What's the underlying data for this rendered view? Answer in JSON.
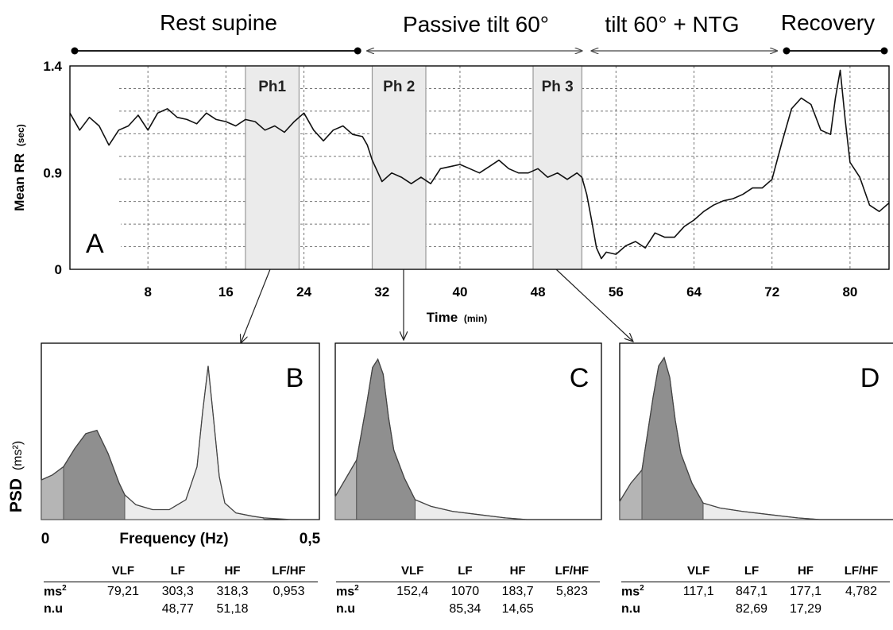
{
  "protocol": {
    "phases": [
      {
        "label": "Rest supine",
        "x_start": 0,
        "x_end": 30,
        "marker": "dot"
      },
      {
        "label": "Passive tilt 60°",
        "x_start": 30,
        "x_end": 53,
        "marker": "arrow"
      },
      {
        "label": "tilt 60° + NTG",
        "x_start": 53,
        "x_end": 73,
        "marker": "arrow"
      },
      {
        "label": "Recovery",
        "x_start": 73,
        "x_end": 84,
        "marker": "dot"
      }
    ]
  },
  "chart_data": [
    {
      "type": "line",
      "panel_label": "A",
      "xlabel": "Time",
      "xlabel_unit": "(min)",
      "ylabel": "Mean RR",
      "ylabel_unit": "(sec)",
      "xlim": [
        0,
        84
      ],
      "ylim": [
        0.45,
        1.4
      ],
      "x_ticks": [
        "8",
        "16",
        "24",
        "32",
        "40",
        "48",
        "56",
        "64",
        "72",
        "80"
      ],
      "y_tick_labels": [
        {
          "value": 1.4,
          "label": "1.4"
        },
        {
          "value": 0.9,
          "label": "0.9"
        },
        {
          "value": 0.45,
          "label": "0"
        }
      ],
      "grid": true,
      "highlight_windows": [
        {
          "label": "Ph1",
          "x_start": 18,
          "x_end": 23.5
        },
        {
          "label": "Ph 2",
          "x_start": 31,
          "x_end": 36.5
        },
        {
          "label": "Ph 3",
          "x_start": 47.5,
          "x_end": 52.5
        }
      ],
      "series": [
        {
          "x": [
            0,
            1,
            2,
            3,
            4,
            5,
            6,
            7,
            8,
            9,
            10,
            11,
            12,
            13,
            14,
            15,
            16,
            17,
            18,
            19,
            20,
            21,
            22,
            23,
            24,
            25,
            26,
            27,
            28,
            29,
            30,
            30.5,
            31,
            32,
            33,
            34,
            35,
            36,
            37,
            38,
            39,
            40,
            41,
            42,
            43,
            44,
            45,
            46,
            47,
            48,
            49,
            50,
            51,
            52,
            52.5,
            53,
            53.5,
            54,
            54.5,
            55,
            56,
            57,
            58,
            59,
            60,
            61,
            62,
            63,
            64,
            65,
            66,
            67,
            68,
            69,
            70,
            71,
            72,
            73,
            74,
            75,
            76,
            77,
            78,
            78.5,
            79,
            79.5,
            80,
            81,
            82,
            83,
            84
          ],
          "y": [
            1.18,
            1.1,
            1.16,
            1.12,
            1.03,
            1.1,
            1.12,
            1.17,
            1.1,
            1.18,
            1.2,
            1.16,
            1.15,
            1.13,
            1.18,
            1.15,
            1.14,
            1.12,
            1.15,
            1.14,
            1.1,
            1.12,
            1.09,
            1.14,
            1.18,
            1.1,
            1.05,
            1.1,
            1.12,
            1.08,
            1.07,
            1.03,
            0.96,
            0.86,
            0.9,
            0.88,
            0.85,
            0.88,
            0.85,
            0.92,
            0.93,
            0.94,
            0.92,
            0.9,
            0.93,
            0.96,
            0.92,
            0.9,
            0.9,
            0.92,
            0.88,
            0.9,
            0.87,
            0.9,
            0.88,
            0.8,
            0.68,
            0.55,
            0.5,
            0.53,
            0.52,
            0.56,
            0.58,
            0.55,
            0.62,
            0.6,
            0.6,
            0.65,
            0.68,
            0.72,
            0.75,
            0.77,
            0.78,
            0.8,
            0.83,
            0.83,
            0.87,
            1.04,
            1.2,
            1.25,
            1.22,
            1.1,
            1.08,
            1.25,
            1.38,
            1.15,
            0.95,
            0.88,
            0.75,
            0.72,
            0.76
          ]
        }
      ]
    },
    {
      "type": "area",
      "panel_label": "B",
      "xlabel": "Frequency (Hz)",
      "ylabel": "PSD",
      "ylabel_unit": "(ms²)",
      "xlim": [
        0,
        0.5
      ],
      "x_tick_labels": [
        "0",
        "0,5"
      ],
      "band_edges": [
        0.04,
        0.15,
        0.4
      ],
      "series": [
        {
          "x": [
            0.0,
            0.02,
            0.04,
            0.06,
            0.08,
            0.1,
            0.12,
            0.14,
            0.15,
            0.17,
            0.2,
            0.23,
            0.26,
            0.28,
            0.29,
            0.3,
            0.31,
            0.32,
            0.33,
            0.35,
            0.38,
            0.4,
            0.45,
            0.5
          ],
          "y": [
            0.24,
            0.27,
            0.32,
            0.43,
            0.52,
            0.54,
            0.4,
            0.22,
            0.15,
            0.09,
            0.06,
            0.06,
            0.12,
            0.32,
            0.65,
            0.93,
            0.6,
            0.26,
            0.1,
            0.04,
            0.02,
            0.01,
            0.0,
            0.0
          ]
        }
      ]
    },
    {
      "type": "area",
      "panel_label": "C",
      "xlim": [
        0,
        0.5
      ],
      "band_edges": [
        0.04,
        0.15,
        0.4
      ],
      "series": [
        {
          "x": [
            0.0,
            0.02,
            0.04,
            0.06,
            0.07,
            0.08,
            0.09,
            0.1,
            0.11,
            0.13,
            0.15,
            0.18,
            0.22,
            0.27,
            0.32,
            0.36,
            0.4,
            0.45,
            0.5
          ],
          "y": [
            0.14,
            0.25,
            0.36,
            0.72,
            0.92,
            0.97,
            0.88,
            0.62,
            0.42,
            0.25,
            0.12,
            0.08,
            0.05,
            0.03,
            0.01,
            0.0,
            0.0,
            0.0,
            0.0
          ]
        }
      ]
    },
    {
      "type": "area",
      "panel_label": "D",
      "xlim": [
        0,
        0.5
      ],
      "band_edges": [
        0.04,
        0.15,
        0.4
      ],
      "series": [
        {
          "x": [
            0.0,
            0.02,
            0.04,
            0.06,
            0.07,
            0.08,
            0.09,
            0.1,
            0.11,
            0.13,
            0.15,
            0.18,
            0.22,
            0.27,
            0.32,
            0.36,
            0.4,
            0.45,
            0.5
          ],
          "y": [
            0.11,
            0.22,
            0.3,
            0.74,
            0.93,
            0.98,
            0.86,
            0.6,
            0.4,
            0.22,
            0.1,
            0.07,
            0.05,
            0.03,
            0.01,
            0.0,
            0.0,
            0.0,
            0.0
          ]
        }
      ]
    }
  ],
  "tables": [
    {
      "headers": [
        "VLF",
        "LF",
        "HF",
        "LF/HF"
      ],
      "rows": [
        {
          "label": "ms",
          "label_sup": "2",
          "values": [
            "79,21",
            "303,3",
            "318,3",
            "0,953"
          ]
        },
        {
          "label": "n.u",
          "values": [
            "",
            "48,77",
            "51,18",
            ""
          ]
        }
      ]
    },
    {
      "headers": [
        "VLF",
        "LF",
        "HF",
        "LF/HF"
      ],
      "rows": [
        {
          "label": "ms",
          "label_sup": "2",
          "values": [
            "152,4",
            "1070",
            "183,7",
            "5,823"
          ]
        },
        {
          "label": "n.u",
          "values": [
            "",
            "85,34",
            "14,65",
            ""
          ]
        }
      ]
    },
    {
      "headers": [
        "VLF",
        "LF",
        "HF",
        "LF/HF"
      ],
      "rows": [
        {
          "label": "ms",
          "label_sup": "2",
          "values": [
            "117,1",
            "847,1",
            "177,1",
            "4,782"
          ]
        },
        {
          "label": "n.u",
          "values": [
            "",
            "82,69",
            "17,29",
            ""
          ]
        }
      ]
    }
  ],
  "colors": {
    "vlf": "#b5b5b5",
    "lf": "#8f8f8f",
    "hf": "#ececec",
    "window": "#ebebeb",
    "line": "#111111"
  }
}
